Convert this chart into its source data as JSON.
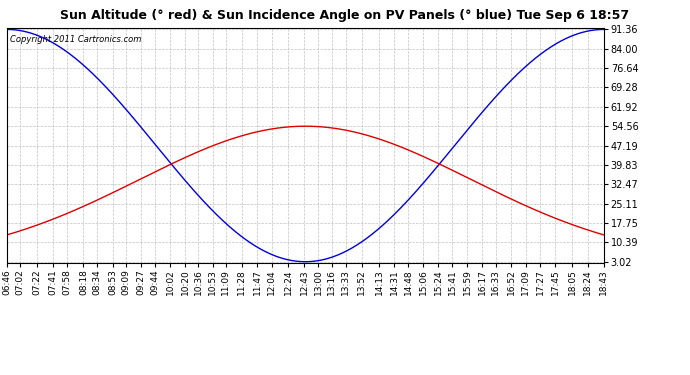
{
  "title": "Sun Altitude (° red) & Sun Incidence Angle on PV Panels (° blue) Tue Sep 6 18:57",
  "copyright": "Copyright 2011 Cartronics.com",
  "background_color": "#ffffff",
  "plot_bg_color": "#ffffff",
  "grid_color": "#bbbbbb",
  "line_blue_color": "#0000dd",
  "line_red_color": "#dd0000",
  "yticks": [
    3.02,
    10.39,
    17.75,
    25.11,
    32.47,
    39.83,
    47.19,
    54.56,
    61.92,
    69.28,
    76.64,
    84.0,
    91.36
  ],
  "ymin": 3.02,
  "ymax": 91.36,
  "time_labels": [
    "06:46",
    "07:02",
    "07:22",
    "07:41",
    "07:58",
    "08:18",
    "08:34",
    "08:53",
    "09:09",
    "09:27",
    "09:44",
    "10:02",
    "10:20",
    "10:36",
    "10:53",
    "11:09",
    "11:28",
    "11:47",
    "12:04",
    "12:24",
    "12:43",
    "13:00",
    "13:16",
    "13:33",
    "13:52",
    "14:13",
    "14:31",
    "14:48",
    "15:06",
    "15:24",
    "15:41",
    "15:59",
    "16:17",
    "16:33",
    "16:52",
    "17:09",
    "17:27",
    "17:45",
    "18:05",
    "18:24",
    "18:43"
  ],
  "alt_peak": 54.56,
  "alt_base": 3.02,
  "inc_max": 91.36,
  "inc_min": 3.02,
  "title_fontsize": 9,
  "tick_fontsize": 6.5,
  "ytick_fontsize": 7,
  "copyright_fontsize": 6
}
